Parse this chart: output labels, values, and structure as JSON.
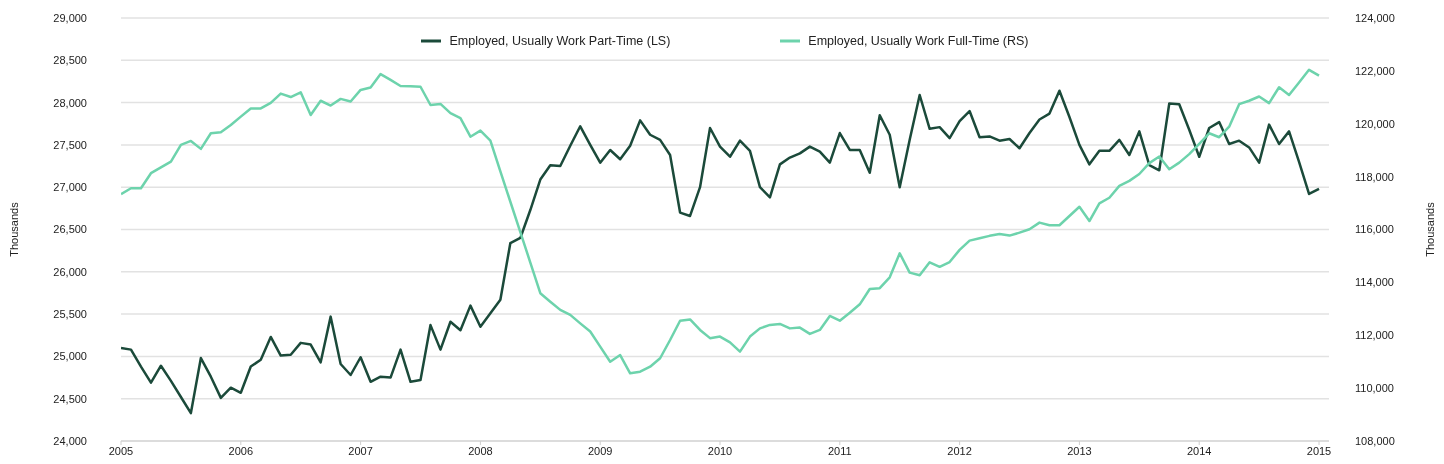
{
  "chart_data": {
    "type": "line",
    "ylabel": "Thousands",
    "y2label": "Thousands",
    "legend": "top",
    "grid": "y",
    "marker": "none",
    "line_style": "solid",
    "x": [
      "2005-01",
      "2005-02",
      "2005-03",
      "2005-04",
      "2005-05",
      "2005-06",
      "2005-07",
      "2005-08",
      "2005-09",
      "2005-10",
      "2005-11",
      "2005-12",
      "2006-01",
      "2006-02",
      "2006-03",
      "2006-04",
      "2006-05",
      "2006-06",
      "2006-07",
      "2006-08",
      "2006-09",
      "2006-10",
      "2006-11",
      "2006-12",
      "2007-01",
      "2007-02",
      "2007-03",
      "2007-04",
      "2007-05",
      "2007-06",
      "2007-07",
      "2007-08",
      "2007-09",
      "2007-10",
      "2007-11",
      "2007-12",
      "2008-01",
      "2008-02",
      "2008-03",
      "2008-04",
      "2008-05",
      "2008-06",
      "2008-07",
      "2008-08",
      "2008-09",
      "2008-10",
      "2008-11",
      "2008-12",
      "2009-01",
      "2009-02",
      "2009-03",
      "2009-04",
      "2009-05",
      "2009-06",
      "2009-07",
      "2009-08",
      "2009-09",
      "2009-10",
      "2009-11",
      "2009-12",
      "2010-01",
      "2010-02",
      "2010-03",
      "2010-04",
      "2010-05",
      "2010-06",
      "2010-07",
      "2010-08",
      "2010-09",
      "2010-10",
      "2010-11",
      "2010-12",
      "2011-01",
      "2011-02",
      "2011-03",
      "2011-04",
      "2011-05",
      "2011-06",
      "2011-07",
      "2011-08",
      "2011-09",
      "2011-10",
      "2011-11",
      "2011-12",
      "2012-01",
      "2012-02",
      "2012-03",
      "2012-04",
      "2012-05",
      "2012-06",
      "2012-07",
      "2012-08",
      "2012-09",
      "2012-10",
      "2012-11",
      "2012-12",
      "2013-01",
      "2013-02",
      "2013-03",
      "2013-04",
      "2013-05",
      "2013-06",
      "2013-07",
      "2013-08",
      "2013-09",
      "2013-10",
      "2013-11",
      "2013-12",
      "2014-01",
      "2014-02",
      "2014-03",
      "2014-04",
      "2014-05",
      "2014-06",
      "2014-07",
      "2014-08",
      "2014-09",
      "2014-10",
      "2014-11",
      "2014-12",
      "2015-01"
    ],
    "xlim": [
      "2005-01",
      "2015-02"
    ],
    "xticks": [
      "2005",
      "2006",
      "2007",
      "2008",
      "2009",
      "2010",
      "2011",
      "2012",
      "2013",
      "2014",
      "2015"
    ],
    "ylim": [
      24000,
      29000
    ],
    "yticks": [
      {
        "value": 24000,
        "label": "24,000"
      },
      {
        "value": 24500,
        "label": "24,500"
      },
      {
        "value": 25000,
        "label": "25,000"
      },
      {
        "value": 25500,
        "label": "25,500"
      },
      {
        "value": 26000,
        "label": "26,000"
      },
      {
        "value": 26500,
        "label": "26,500"
      },
      {
        "value": 27000,
        "label": "27,000"
      },
      {
        "value": 27500,
        "label": "27,500"
      },
      {
        "value": 28000,
        "label": "28,000"
      },
      {
        "value": 28500,
        "label": "28,500"
      },
      {
        "value": 29000,
        "label": "29,000"
      }
    ],
    "y2lim": [
      108000,
      124000
    ],
    "y2ticks": [
      {
        "value": 108000,
        "label": "108,000"
      },
      {
        "value": 110000,
        "label": "110,000"
      },
      {
        "value": 112000,
        "label": "112,000"
      },
      {
        "value": 114000,
        "label": "114,000"
      },
      {
        "value": 116000,
        "label": "116,000"
      },
      {
        "value": 118000,
        "label": "118,000"
      },
      {
        "value": 120000,
        "label": "120,000"
      },
      {
        "value": 122000,
        "label": "122,000"
      },
      {
        "value": 124000,
        "label": "124,000"
      }
    ],
    "series": [
      {
        "name": "Employed, Usually Work Part-Time (LS)",
        "color": "#1b4a3a",
        "axis": "y",
        "values": [
          25100,
          25080,
          24880,
          24690,
          24890,
          24710,
          24520,
          24330,
          24980,
          24760,
          24510,
          24630,
          24570,
          24880,
          24960,
          25230,
          25010,
          25020,
          25160,
          25140,
          24930,
          25470,
          24910,
          24780,
          24990,
          24700,
          24760,
          24750,
          25080,
          24700,
          24720,
          25370,
          25080,
          25410,
          25310,
          25600,
          25350,
          25510,
          25670,
          26340,
          26400,
          26730,
          27090,
          27260,
          27250,
          27490,
          27720,
          27500,
          27290,
          27440,
          27330,
          27490,
          27790,
          27620,
          27560,
          27380,
          26700,
          26660,
          27000,
          27700,
          27480,
          27360,
          27550,
          27430,
          27000,
          26880,
          27270,
          27350,
          27400,
          27480,
          27420,
          27290,
          27640,
          27440,
          27440,
          27170,
          27850,
          27620,
          27000,
          27560,
          28090,
          27690,
          27710,
          27580,
          27780,
          27900,
          27590,
          27600,
          27550,
          27570,
          27460,
          27640,
          27800,
          27870,
          28140,
          27830,
          27500,
          27270,
          27430,
          27430,
          27560,
          27380,
          27660,
          27260,
          27200,
          27990,
          27980,
          27680,
          27360,
          27700,
          27770,
          27510,
          27550,
          27470,
          27290,
          27740,
          27510,
          27660,
          27300,
          26920,
          26980
        ]
      },
      {
        "name": "Employed, Usually Work Full-Time (RS)",
        "color": "#6dd3ac",
        "axis": "y2",
        "values": [
          117340,
          117560,
          117560,
          118130,
          118350,
          118570,
          119200,
          119350,
          119050,
          119640,
          119680,
          119950,
          120270,
          120580,
          120580,
          120790,
          121140,
          121010,
          121190,
          120330,
          120870,
          120690,
          120940,
          120840,
          121280,
          121370,
          121880,
          121660,
          121430,
          121420,
          121400,
          120710,
          120750,
          120400,
          120210,
          119510,
          119740,
          119360,
          118200,
          117050,
          115900,
          114750,
          113590,
          113270,
          112960,
          112770,
          112450,
          112140,
          111570,
          111000,
          111250,
          110560,
          110620,
          110810,
          111130,
          111820,
          112550,
          112600,
          112200,
          111890,
          111950,
          111730,
          111380,
          111950,
          112260,
          112390,
          112430,
          112260,
          112290,
          112050,
          112200,
          112730,
          112550,
          112850,
          113170,
          113750,
          113780,
          114190,
          115100,
          114370,
          114270,
          114760,
          114590,
          114770,
          115230,
          115580,
          115670,
          115760,
          115830,
          115770,
          115880,
          116010,
          116260,
          116160,
          116160,
          116510,
          116860,
          116320,
          116990,
          117200,
          117650,
          117840,
          118100,
          118510,
          118760,
          118280,
          118530,
          118850,
          119240,
          119640,
          119490,
          119890,
          120740,
          120870,
          121030,
          120780,
          121380,
          121090,
          121560,
          122040,
          121820
        ]
      }
    ]
  }
}
